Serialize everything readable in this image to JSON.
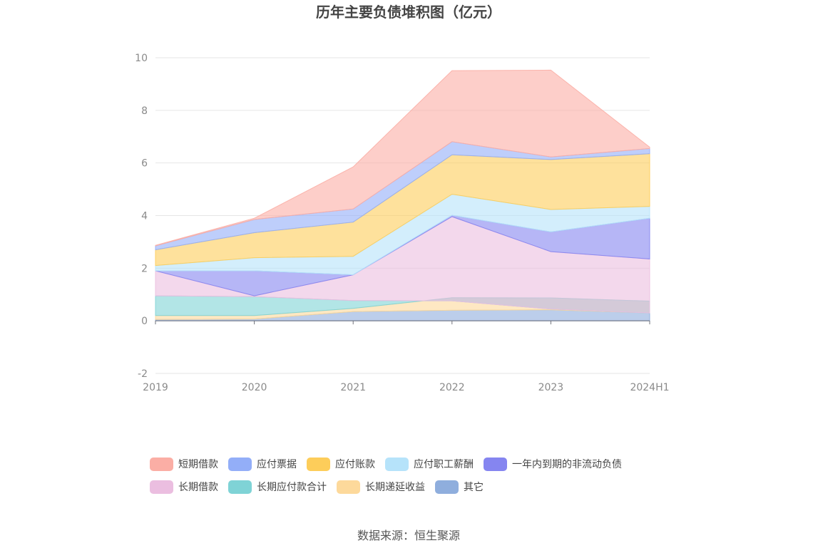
{
  "chart_data": {
    "type": "area",
    "title": "历年主要负债堆积图（亿元）",
    "source": "数据来源：恒生聚源",
    "categories": [
      "2019",
      "2020",
      "2021",
      "2022",
      "2023",
      "2024H1"
    ],
    "ylim": [
      -2,
      10
    ],
    "yticks": [
      "-2",
      "0",
      "2",
      "4",
      "6",
      "8",
      "10"
    ],
    "grid": true,
    "legend_position": "bottom",
    "series": [
      {
        "name": "其它",
        "color": "#8faedd",
        "values": [
          0.05,
          0.07,
          0.35,
          0.4,
          0.42,
          0.3
        ]
      },
      {
        "name": "长期递延收益",
        "color": "#fdd99b",
        "values": [
          0.15,
          0.13,
          0.12,
          0.48,
          0.45,
          0.45
        ]
      },
      {
        "name": "长期应付款合计",
        "color": "#7fd3d6",
        "values": [
          0.75,
          0.72,
          0.3,
          -0.12,
          -0.42,
          -0.45
        ]
      },
      {
        "name": "长期借款",
        "color": "#ebbee0",
        "values": [
          0.95,
          0.03,
          0.98,
          3.2,
          2.18,
          2.05
        ]
      },
      {
        "name": "一年内到期的非流动负债",
        "color": "#8585f0",
        "values": [
          0.0,
          0.95,
          0.0,
          0.05,
          0.75,
          1.55
        ]
      },
      {
        "name": "应付职工薪酬",
        "color": "#b6e3fa",
        "values": [
          0.2,
          0.5,
          0.7,
          0.8,
          0.85,
          0.45
        ]
      },
      {
        "name": "应付账款",
        "color": "#fdcd5a",
        "values": [
          0.6,
          0.95,
          1.3,
          1.5,
          1.9,
          2.0
        ]
      },
      {
        "name": "应付票据",
        "color": "#93aef8",
        "values": [
          0.15,
          0.5,
          0.5,
          0.5,
          0.1,
          0.2
        ]
      },
      {
        "name": "短期借款",
        "color": "#fbaea5",
        "values": [
          0.02,
          0.05,
          1.6,
          2.7,
          3.3,
          0.05
        ]
      }
    ],
    "legend_order": [
      "短期借款",
      "应付票据",
      "应付账款",
      "应付职工薪酬",
      "一年内到期的非流动负债",
      "长期借款",
      "长期应付款合计",
      "长期递延收益",
      "其它"
    ]
  }
}
